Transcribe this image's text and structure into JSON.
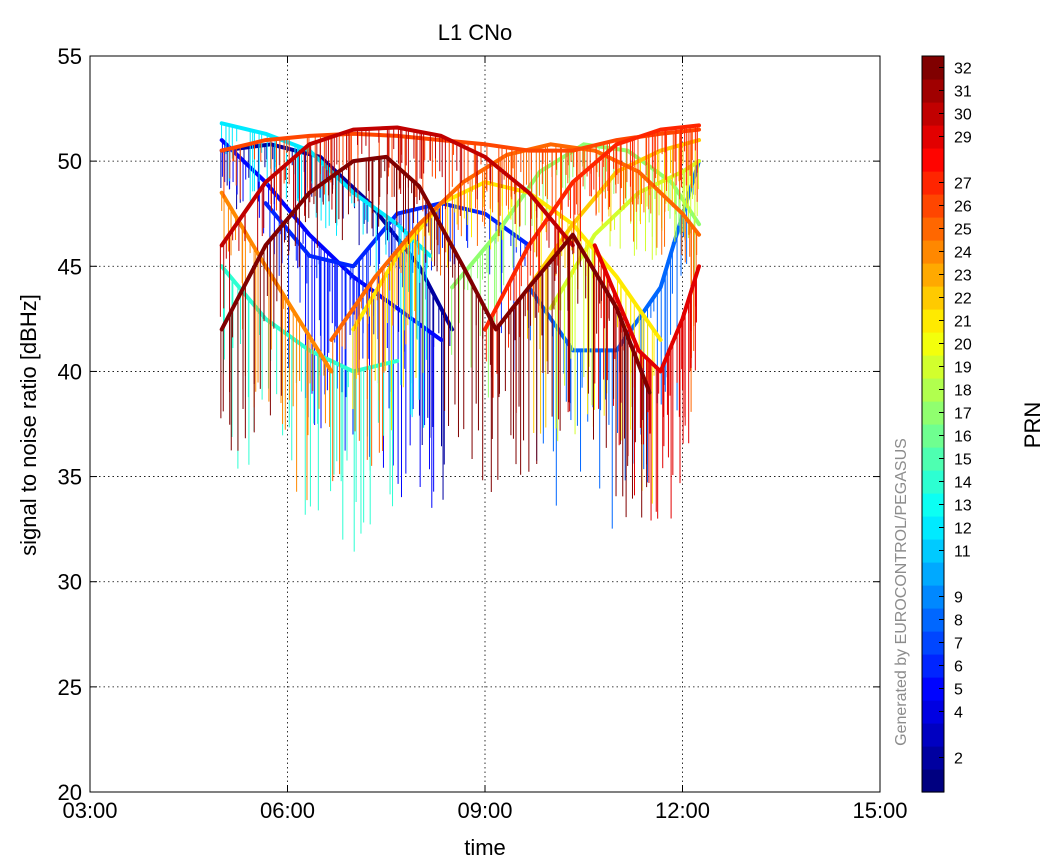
{
  "chart_data": {
    "type": "scatter",
    "title": "L1 CNo",
    "xlabel": "time",
    "ylabel": "signal to noise ratio  [dBHz]",
    "xlim": [
      "03:00",
      "15:00"
    ],
    "ylim": [
      20,
      55
    ],
    "x_ticks": [
      "03:00",
      "06:00",
      "09:00",
      "12:00",
      "15:00"
    ],
    "y_ticks": [
      20,
      25,
      30,
      35,
      40,
      45,
      50,
      55
    ],
    "grid": true,
    "colorbar": {
      "label": "PRN",
      "colormap": "jet",
      "range": [
        1,
        32
      ],
      "ticks": [
        2,
        4,
        5,
        6,
        7,
        8,
        9,
        11,
        12,
        13,
        14,
        15,
        16,
        17,
        18,
        19,
        20,
        21,
        22,
        23,
        24,
        25,
        26,
        27,
        29,
        30,
        31,
        32
      ]
    },
    "watermark": "Generated by EUROCONTROL/PEGASUS",
    "series": [
      {
        "prn": 2,
        "x": [
          "05:00",
          "05:45",
          "06:30",
          "07:15",
          "08:00",
          "08:30"
        ],
        "y": [
          50.5,
          50.8,
          50.2,
          48.0,
          45.0,
          42.0
        ]
      },
      {
        "prn": 5,
        "x": [
          "05:00",
          "05:40",
          "06:20",
          "07:00",
          "07:40",
          "08:20"
        ],
        "y": [
          51.0,
          49.0,
          46.5,
          44.5,
          43.0,
          41.5
        ]
      },
      {
        "prn": 6,
        "x": [
          "05:40",
          "06:20",
          "07:00",
          "07:40",
          "08:20",
          "09:00",
          "09:40"
        ],
        "y": [
          48.0,
          45.5,
          45.0,
          47.5,
          48.0,
          47.5,
          46.0
        ]
      },
      {
        "prn": 8,
        "x": [
          "09:40",
          "10:20",
          "11:00",
          "11:40",
          "12:15"
        ],
        "y": [
          44.0,
          41.0,
          41.0,
          44.0,
          50.0
        ]
      },
      {
        "prn": 12,
        "x": [
          "05:00",
          "05:40",
          "06:20",
          "07:00",
          "07:40",
          "08:10"
        ],
        "y": [
          51.8,
          51.3,
          50.5,
          48.5,
          47.0,
          45.5
        ]
      },
      {
        "prn": 14,
        "x": [
          "05:00",
          "05:40",
          "06:20",
          "07:00",
          "07:40"
        ],
        "y": [
          45.0,
          42.5,
          41.0,
          40.0,
          40.5
        ]
      },
      {
        "prn": 17,
        "x": [
          "08:30",
          "09:10",
          "09:50",
          "10:30",
          "11:10",
          "11:50",
          "12:15"
        ],
        "y": [
          44.0,
          46.5,
          49.5,
          50.8,
          50.5,
          49.0,
          47.0
        ]
      },
      {
        "prn": 19,
        "x": [
          "10:00",
          "10:40",
          "11:20",
          "12:00",
          "12:15"
        ],
        "y": [
          43.0,
          46.5,
          48.5,
          49.5,
          50.0
        ]
      },
      {
        "prn": 21,
        "x": [
          "07:00",
          "07:40",
          "08:20",
          "09:00",
          "09:40",
          "10:20",
          "11:00",
          "11:40"
        ],
        "y": [
          42.0,
          45.5,
          48.0,
          49.0,
          48.5,
          47.0,
          44.5,
          41.5
        ]
      },
      {
        "prn": 22,
        "x": [
          "09:40",
          "10:20",
          "11:00",
          "11:40",
          "12:15"
        ],
        "y": [
          44.0,
          47.0,
          49.5,
          50.5,
          51.0
        ]
      },
      {
        "prn": 24,
        "x": [
          "05:00",
          "05:40",
          "06:10",
          "06:40"
        ],
        "y": [
          48.5,
          45.0,
          42.5,
          40.0
        ]
      },
      {
        "prn": 25,
        "x": [
          "06:40",
          "07:20",
          "08:00",
          "08:40",
          "09:20",
          "10:00",
          "10:40",
          "11:20",
          "12:00",
          "12:15"
        ],
        "y": [
          41.5,
          44.5,
          47.0,
          49.0,
          50.3,
          50.8,
          50.5,
          49.5,
          47.5,
          46.5
        ]
      },
      {
        "prn": 26,
        "x": [
          "05:00",
          "05:40",
          "06:20",
          "07:00",
          "07:40",
          "08:20",
          "09:00",
          "09:40",
          "10:20",
          "11:00",
          "11:40",
          "12:15"
        ],
        "y": [
          50.5,
          51.0,
          51.2,
          51.3,
          51.2,
          51.0,
          50.8,
          50.5,
          50.5,
          51.0,
          51.3,
          51.5
        ]
      },
      {
        "prn": 27,
        "x": [
          "09:00",
          "09:40",
          "10:20",
          "11:00",
          "11:40",
          "12:15"
        ],
        "y": [
          42.0,
          46.0,
          49.0,
          50.8,
          51.5,
          51.7
        ]
      },
      {
        "prn": 29,
        "x": [
          "10:40",
          "11:00",
          "11:20",
          "11:40",
          "12:00",
          "12:15"
        ],
        "y": [
          46.0,
          43.5,
          41.0,
          40.0,
          42.5,
          45.0
        ]
      },
      {
        "prn": 30,
        "x": [
          "05:00",
          "05:40",
          "06:20",
          "07:00",
          "07:40",
          "08:20",
          "09:00",
          "09:40",
          "10:20"
        ],
        "y": [
          46.0,
          49.0,
          50.8,
          51.5,
          51.6,
          51.2,
          50.2,
          48.5,
          46.0
        ]
      },
      {
        "prn": 32,
        "x": [
          "05:00",
          "05:40",
          "06:20",
          "07:00",
          "07:30",
          "08:00",
          "08:40",
          "09:10",
          "09:40",
          "10:20",
          "11:00",
          "11:30"
        ],
        "y": [
          42.0,
          46.0,
          48.5,
          50.0,
          50.2,
          48.8,
          45.0,
          42.0,
          44.0,
          46.5,
          43.0,
          39.0
        ]
      }
    ]
  }
}
